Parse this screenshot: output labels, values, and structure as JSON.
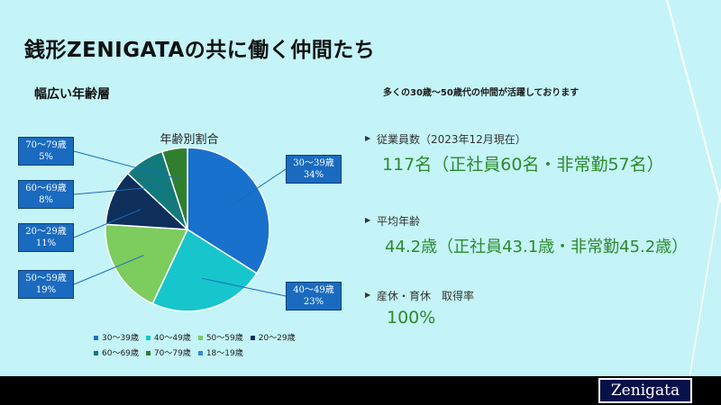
{
  "header": {
    "title": "銭形ZENIGATAの共に働く仲間たち",
    "subtitle": "幅広い年齢層",
    "tagline": "多くの30歳～50歳代の仲間が活躍しております"
  },
  "chart_data": {
    "type": "pie",
    "title": "年齢別割合",
    "slices": [
      {
        "label": "30～39歳",
        "value": 34,
        "color": "#1871cc",
        "display": "34%"
      },
      {
        "label": "40～49歳",
        "value": 23,
        "color": "#16c6cc",
        "display": "23%"
      },
      {
        "label": "50～59歳",
        "value": 19,
        "color": "#7ccc5e",
        "display": "19%"
      },
      {
        "label": "20～29歳",
        "value": 11,
        "color": "#0d2f5a",
        "display": "11%"
      },
      {
        "label": "60～69歳",
        "value": 8,
        "color": "#127a7c",
        "display": "8%"
      },
      {
        "label": "70～79歳",
        "value": 5,
        "color": "#2f7f2f",
        "display": "5%"
      },
      {
        "label": "18～19歳",
        "value": 0,
        "color": "#2f8bd8",
        "display": ""
      }
    ],
    "legend": [
      "30～39歳",
      "40～49歳",
      "50～59歳",
      "20～29歳",
      "60～69歳",
      "70～79歳",
      "18～19歳"
    ],
    "legend_position": "bottom"
  },
  "stats": [
    {
      "label": "従業員数（2023年12月現在）",
      "value": "117名（正社員60名・非常勤57名）"
    },
    {
      "label": "平均年齢",
      "value": "44.2歳（正社員43.1歳・非常勤45.2歳）"
    },
    {
      "label": "産休・育休　取得率",
      "value": "100%"
    }
  ],
  "footer": {
    "logo_text": "Zenigata"
  },
  "colors": {
    "background": "#c4f4f7",
    "accent": "#1a6bbf",
    "stat_value": "#2c8a2c",
    "footer": "#000000"
  }
}
